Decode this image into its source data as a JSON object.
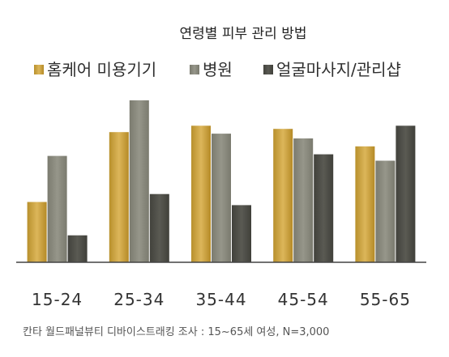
{
  "chart_data": {
    "type": "bar",
    "title": "연령별 피부 관리 방법",
    "categories": [
      "15-24",
      "25-34",
      "35-44",
      "45-54",
      "55-65"
    ],
    "series": [
      {
        "name": "홈케어 미용기기",
        "values": [
          38,
          82,
          86,
          84,
          73
        ],
        "color": "#c9a13c"
      },
      {
        "name": "병원",
        "values": [
          67,
          102,
          81,
          78,
          64
        ],
        "color": "#8a8a7c"
      },
      {
        "name": "얼굴마사지/관리샵",
        "values": [
          17,
          43,
          36,
          68,
          86
        ],
        "color": "#4e4e48"
      }
    ],
    "ylim": [
      0,
      104
    ],
    "grid": false,
    "legend_position": "top",
    "source": "칸타 월드패널뷰티 디바이스트래킹 조사 : 15~65세 여성, N=3,000"
  }
}
